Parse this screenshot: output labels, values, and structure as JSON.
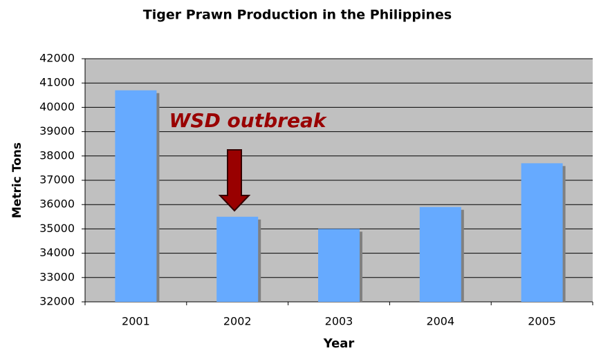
{
  "chart_data": {
    "type": "bar",
    "title": "Tiger Prawn Production in the Philippines",
    "x_label": "Year",
    "y_label": "Metric Tons",
    "categories": [
      "2001",
      "2002",
      "2003",
      "2004",
      "2005"
    ],
    "values": [
      40700,
      35500,
      35000,
      35900,
      37700
    ],
    "color": "#66aaff",
    "ylim": [
      32000,
      42000
    ],
    "yticks": [
      32000,
      33000,
      34000,
      35000,
      36000,
      37000,
      38000,
      39000,
      40000,
      41000,
      42000
    ],
    "grid": true,
    "annotation": "WSD outbreak"
  }
}
